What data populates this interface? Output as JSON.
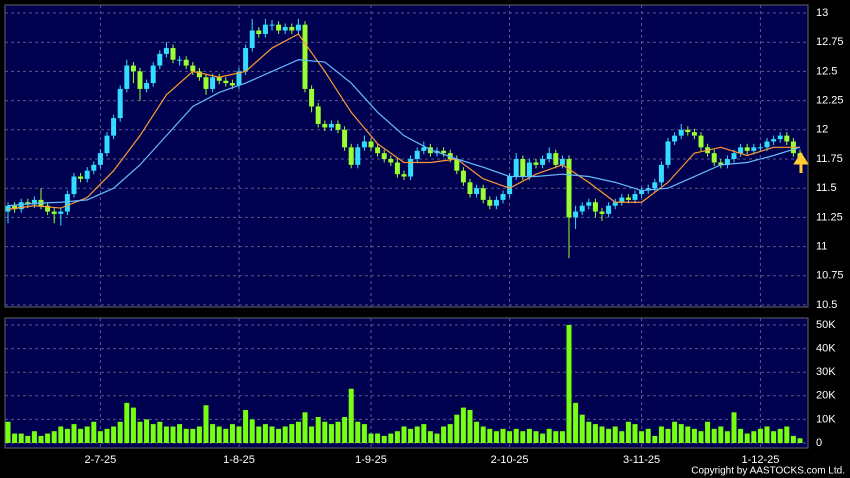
{
  "chart_data": [
    {
      "type": "candlestick",
      "categories": [
        null,
        null,
        null,
        null,
        null,
        null,
        null,
        null,
        null,
        null,
        null,
        null,
        null,
        null,
        "2-7-25",
        null,
        null,
        null,
        null,
        null,
        null,
        null,
        null,
        null,
        null,
        null,
        null,
        null,
        null,
        null,
        null,
        null,
        null,
        null,
        null,
        "1-8-25",
        null,
        null,
        null,
        null,
        null,
        null,
        null,
        null,
        null,
        null,
        null,
        null,
        null,
        null,
        null,
        null,
        null,
        null,
        null,
        "1-9-25",
        null,
        null,
        null,
        null,
        null,
        null,
        null,
        null,
        null,
        null,
        null,
        null,
        null,
        null,
        null,
        null,
        null,
        null,
        null,
        null,
        "2-10-25",
        null,
        null,
        null,
        null,
        null,
        null,
        null,
        null,
        null,
        null,
        null,
        null,
        null,
        null,
        null,
        null,
        null,
        null,
        null,
        "3-11-25",
        null,
        null,
        null,
        null,
        null,
        null,
        null,
        null,
        null,
        null,
        null,
        null,
        null,
        null,
        null,
        null,
        null,
        "1-12-25",
        null,
        null,
        null,
        null,
        null,
        null
      ],
      "open": [
        11.3,
        11.35,
        11.32,
        11.38,
        11.36,
        11.4,
        11.35,
        11.3,
        11.28,
        11.3,
        11.45,
        11.6,
        11.58,
        11.65,
        11.7,
        11.8,
        11.95,
        12.1,
        12.35,
        12.55,
        12.5,
        12.35,
        12.4,
        12.55,
        12.65,
        12.7,
        12.6,
        12.6,
        12.55,
        12.5,
        12.45,
        12.35,
        12.45,
        12.42,
        12.4,
        12.38,
        12.5,
        12.7,
        12.85,
        12.82,
        12.9,
        12.9,
        12.85,
        12.88,
        12.85,
        12.9,
        12.35,
        12.2,
        12.05,
        12.02,
        12.05,
        12.0,
        11.85,
        11.7,
        11.85,
        11.9,
        11.85,
        11.8,
        11.75,
        11.72,
        11.62,
        11.6,
        11.75,
        11.82,
        11.85,
        11.8,
        11.82,
        11.8,
        11.75,
        11.65,
        11.55,
        11.45,
        11.5,
        11.4,
        11.35,
        11.4,
        11.45,
        11.6,
        11.75,
        11.6,
        11.72,
        11.7,
        11.75,
        11.8,
        11.7,
        11.75,
        11.25,
        11.3,
        11.35,
        11.38,
        11.3,
        11.28,
        11.35,
        11.38,
        11.42,
        11.4,
        11.45,
        11.48,
        11.5,
        11.55,
        11.7,
        11.9,
        11.95,
        12.0,
        11.98,
        11.95,
        11.85,
        11.8,
        11.72,
        11.7,
        11.75,
        11.8,
        11.85,
        11.82,
        11.85,
        11.85,
        11.9,
        11.92,
        11.95,
        11.9,
        11.8
      ],
      "high": [
        11.38,
        11.38,
        11.41,
        11.41,
        11.43,
        11.5,
        11.38,
        11.33,
        11.33,
        11.48,
        11.63,
        11.63,
        11.68,
        11.73,
        11.83,
        11.98,
        12.13,
        12.38,
        12.6,
        12.58,
        12.53,
        12.43,
        12.58,
        12.68,
        12.75,
        12.73,
        12.63,
        12.63,
        12.58,
        12.53,
        12.48,
        12.48,
        12.48,
        12.45,
        12.43,
        12.53,
        12.73,
        12.95,
        12.88,
        12.95,
        12.94,
        12.93,
        12.91,
        12.91,
        12.95,
        12.93,
        12.38,
        12.23,
        12.08,
        12.08,
        12.08,
        12.03,
        11.88,
        11.88,
        11.95,
        11.93,
        11.88,
        11.83,
        11.78,
        11.75,
        11.65,
        11.78,
        11.85,
        11.9,
        11.88,
        11.85,
        11.85,
        11.83,
        11.78,
        11.68,
        11.58,
        11.53,
        11.53,
        11.43,
        11.43,
        11.48,
        11.63,
        11.8,
        11.78,
        11.75,
        11.75,
        11.78,
        11.85,
        11.83,
        11.78,
        11.78,
        11.35,
        11.38,
        11.41,
        11.41,
        11.33,
        11.38,
        11.41,
        11.45,
        11.45,
        11.48,
        11.51,
        11.53,
        11.58,
        11.73,
        11.93,
        11.98,
        12.05,
        12.03,
        12.01,
        11.98,
        11.88,
        11.83,
        11.75,
        11.78,
        11.83,
        11.88,
        11.88,
        11.88,
        11.88,
        11.93,
        11.95,
        11.98,
        11.98,
        11.93,
        11.83
      ],
      "low": [
        11.2,
        11.29,
        11.29,
        11.33,
        11.33,
        11.32,
        11.27,
        11.2,
        11.18,
        11.27,
        11.42,
        11.55,
        11.55,
        11.62,
        11.67,
        11.77,
        11.92,
        12.07,
        12.32,
        12.4,
        12.25,
        12.32,
        12.37,
        12.52,
        12.62,
        12.57,
        12.55,
        12.52,
        12.47,
        12.42,
        12.3,
        12.32,
        12.39,
        12.37,
        12.35,
        12.35,
        12.47,
        12.67,
        12.79,
        12.79,
        12.85,
        12.82,
        12.82,
        12.82,
        12.82,
        12.32,
        12.15,
        12.02,
        11.99,
        11.99,
        11.97,
        11.82,
        11.67,
        11.67,
        11.82,
        11.82,
        11.77,
        11.72,
        11.69,
        11.59,
        11.57,
        11.57,
        11.72,
        11.79,
        11.77,
        11.77,
        11.77,
        11.72,
        11.62,
        11.52,
        11.42,
        11.42,
        11.37,
        11.32,
        11.32,
        11.37,
        11.42,
        11.57,
        11.57,
        11.57,
        11.67,
        11.67,
        11.72,
        11.67,
        11.67,
        10.9,
        11.15,
        11.27,
        11.32,
        11.25,
        11.22,
        11.25,
        11.32,
        11.35,
        11.37,
        11.37,
        11.42,
        11.45,
        11.47,
        11.52,
        11.67,
        11.87,
        11.92,
        11.95,
        11.92,
        11.82,
        11.77,
        11.69,
        11.67,
        11.67,
        11.72,
        11.77,
        11.79,
        11.79,
        11.82,
        11.82,
        11.87,
        11.89,
        11.87,
        11.77,
        11.72
      ],
      "close": [
        11.35,
        11.32,
        11.38,
        11.36,
        11.4,
        11.35,
        11.3,
        11.28,
        11.3,
        11.45,
        11.6,
        11.58,
        11.65,
        11.7,
        11.8,
        11.95,
        12.1,
        12.35,
        12.55,
        12.5,
        12.35,
        12.4,
        12.55,
        12.65,
        12.7,
        12.6,
        12.6,
        12.55,
        12.5,
        12.45,
        12.35,
        12.45,
        12.42,
        12.4,
        12.38,
        12.5,
        12.7,
        12.85,
        12.82,
        12.9,
        12.9,
        12.85,
        12.88,
        12.85,
        12.9,
        12.35,
        12.2,
        12.05,
        12.02,
        12.05,
        12.0,
        11.85,
        11.7,
        11.85,
        11.9,
        11.85,
        11.8,
        11.75,
        11.72,
        11.62,
        11.6,
        11.75,
        11.82,
        11.85,
        11.8,
        11.82,
        11.8,
        11.75,
        11.65,
        11.55,
        11.45,
        11.5,
        11.4,
        11.35,
        11.4,
        11.45,
        11.6,
        11.75,
        11.6,
        11.72,
        11.7,
        11.75,
        11.8,
        11.7,
        11.75,
        11.25,
        11.3,
        11.35,
        11.38,
        11.3,
        11.28,
        11.35,
        11.38,
        11.42,
        11.4,
        11.45,
        11.48,
        11.5,
        11.55,
        11.7,
        11.9,
        11.95,
        12.0,
        11.98,
        11.95,
        11.85,
        11.8,
        11.72,
        11.7,
        11.75,
        11.8,
        11.85,
        11.82,
        11.85,
        11.85,
        11.9,
        11.92,
        11.95,
        11.9,
        11.8,
        11.75
      ],
      "up_color": "#33ddff",
      "down_color": "#99ff33",
      "series": [
        {
          "color": "#ff9933",
          "x": [
            0,
            4,
            8,
            12,
            16,
            20,
            24,
            28,
            32,
            36,
            40,
            44,
            48,
            52,
            56,
            60,
            64,
            68,
            72,
            76,
            80,
            84,
            88,
            92,
            96,
            100,
            104,
            108,
            112,
            116,
            120
          ],
          "values": [
            11.32,
            11.35,
            11.33,
            11.42,
            11.65,
            11.95,
            12.3,
            12.5,
            12.45,
            12.5,
            12.7,
            12.82,
            12.5,
            12.15,
            11.88,
            11.72,
            11.72,
            11.75,
            11.58,
            11.5,
            11.62,
            11.7,
            11.55,
            11.38,
            11.38,
            11.55,
            11.8,
            11.85,
            11.78,
            11.85,
            11.85
          ]
        },
        {
          "color": "#66bbff",
          "x": [
            0,
            4,
            8,
            12,
            16,
            20,
            24,
            28,
            32,
            36,
            40,
            44,
            48,
            52,
            56,
            60,
            64,
            68,
            72,
            76,
            80,
            84,
            88,
            92,
            96,
            100,
            104,
            108,
            112,
            116,
            120
          ],
          "values": [
            11.35,
            11.37,
            11.38,
            11.4,
            11.5,
            11.7,
            11.95,
            12.2,
            12.32,
            12.4,
            12.5,
            12.6,
            12.58,
            12.4,
            12.15,
            11.95,
            11.83,
            11.75,
            11.68,
            11.6,
            11.6,
            11.62,
            11.6,
            11.55,
            11.48,
            11.5,
            11.6,
            11.7,
            11.72,
            11.78,
            11.85
          ]
        }
      ],
      "ylim": [
        10.5,
        13
      ],
      "yticks": [
        10.5,
        10.75,
        11,
        11.25,
        11.5,
        11.75,
        12,
        12.25,
        12.5,
        12.75,
        13
      ],
      "grid": true
    },
    {
      "type": "bar",
      "color": "#77ff11",
      "values": [
        9000,
        4000,
        4000,
        3000,
        5000,
        3000,
        4000,
        5000,
        7000,
        6000,
        8000,
        6000,
        7000,
        9000,
        5000,
        6000,
        7000,
        9000,
        17000,
        15000,
        9000,
        10000,
        8000,
        9000,
        7000,
        7000,
        8000,
        6000,
        6000,
        7000,
        16000,
        8000,
        7000,
        6000,
        8000,
        7000,
        14000,
        10000,
        7000,
        8000,
        7000,
        6000,
        7000,
        8000,
        9000,
        13000,
        7000,
        11000,
        9000,
        8000,
        9000,
        11000,
        23000,
        9000,
        8000,
        4000,
        4000,
        3000,
        4000,
        5000,
        7000,
        6000,
        7000,
        8000,
        5000,
        4000,
        7000,
        8000,
        12000,
        15000,
        14000,
        9000,
        7000,
        6000,
        5000,
        6000,
        5000,
        6000,
        5000,
        6000,
        5000,
        4000,
        6000,
        5000,
        5000,
        50000,
        17000,
        12000,
        9000,
        8000,
        7000,
        6000,
        7000,
        5000,
        9000,
        8000,
        5000,
        6000,
        3000,
        7000,
        6000,
        9000,
        8000,
        7000,
        6000,
        5000,
        9000,
        6000,
        7000,
        5000,
        13000,
        6000,
        4000,
        5000,
        6000,
        7000,
        5000,
        6000,
        7000,
        3000,
        2000
      ],
      "ylim": [
        0,
        50000
      ],
      "yticks": [
        0,
        {
          "value": 10000,
          "label": "10K"
        },
        {
          "value": 20000,
          "label": "20K"
        },
        {
          "value": 30000,
          "label": "30K"
        },
        {
          "value": 40000,
          "label": "40K"
        },
        {
          "value": 50000,
          "label": "50K"
        }
      ],
      "grid": true,
      "note_text": "Copyright by AASTOCKS.com Ltd."
    }
  ]
}
